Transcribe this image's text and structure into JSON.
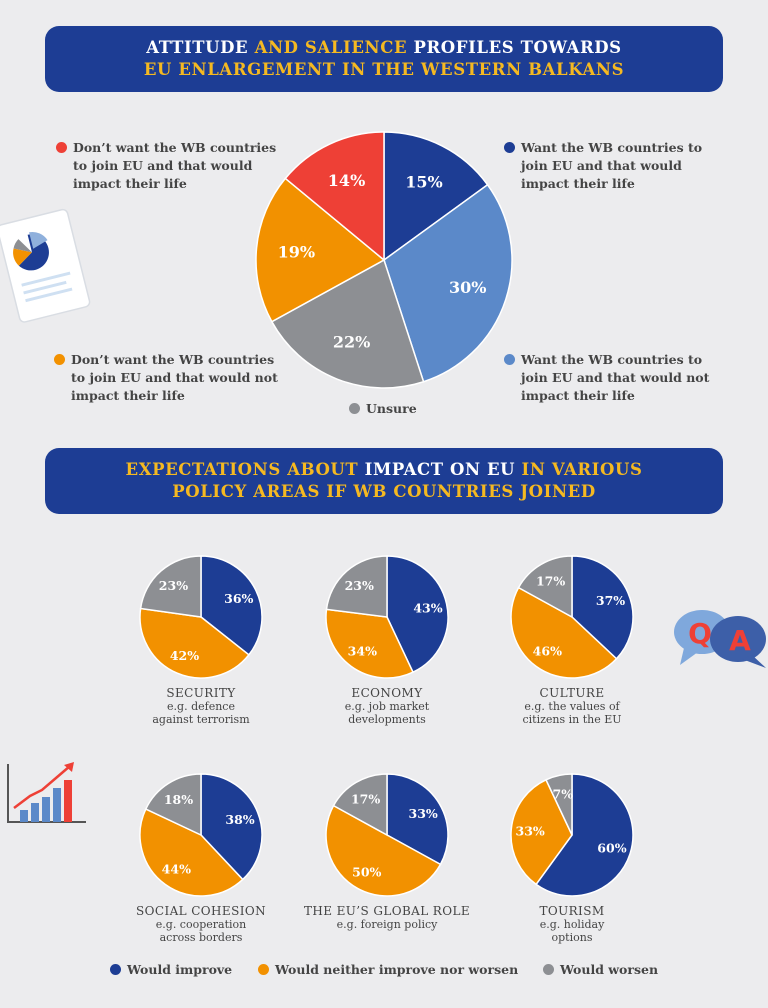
{
  "banner1": {
    "line1": [
      {
        "t": "ATTITUDE ",
        "c": "w"
      },
      {
        "t": "AND SALIENCE ",
        "c": "y"
      },
      {
        "t": "PROFILES TOWARDS",
        "c": "w"
      }
    ],
    "line2": [
      {
        "t": "EU ENLARGEMENT IN THE WESTERN BALKANS",
        "c": "y"
      }
    ]
  },
  "banner2": {
    "line1": [
      {
        "t": "EXPECTATIONS ABOUT ",
        "c": "y"
      },
      {
        "t": "IMPACT ON EU ",
        "c": "w"
      },
      {
        "t": "IN VARIOUS",
        "c": "y"
      }
    ],
    "line2": [
      {
        "t": "POLICY AREAS IF WB COUNTRIES JOINED",
        "c": "y"
      }
    ]
  },
  "colors": {
    "navy": "#1d3d94",
    "light_blue": "#5b89c9",
    "grey": "#8d8f93",
    "orange": "#f29100",
    "red": "#ee4036",
    "yellow": "#f5b921"
  },
  "main_legend": {
    "want_impact": "Want the WB countries to\njoin EU and that would\nimpact their life",
    "want_no_impact": "Want the WB countries to\njoin EU and that would not\nimpact their life",
    "unsure": "Unsure",
    "dont_no_impact": "Don’t want the WB countries\nto join EU and that would not\nimpact their life",
    "dont_impact": "Don’t want the WB countries\nto join EU and that would\nimpact their life"
  },
  "bottom_legend": {
    "improve": "Would improve",
    "neither": "Would neither improve nor worsen",
    "worsen": "Would worsen"
  },
  "decorations": [
    "document-pie-icon",
    "qa-speech-bubbles-icon",
    "growth-bar-chart-icon"
  ],
  "chart_data": [
    {
      "type": "pie",
      "slices": [
        {
          "label": "Want the WB countries to join EU and that would impact their life",
          "value": 15,
          "color": "#1d3d94",
          "text": "15%"
        },
        {
          "label": "Want the WB countries to join EU and that would not impact their life",
          "value": 30,
          "color": "#5b89c9",
          "text": "30%"
        },
        {
          "label": "Unsure",
          "value": 22,
          "color": "#8d8f93",
          "text": "22%"
        },
        {
          "label": "Don’t want the WB countries to join EU and that would not impact their life",
          "value": 19,
          "color": "#f29100",
          "text": "19%"
        },
        {
          "label": "Don’t want the WB countries to join EU and that would impact their life",
          "value": 14,
          "color": "#ee4036",
          "text": "14%"
        }
      ]
    },
    {
      "type": "pie",
      "name": "SECURITY",
      "subtitle": "e.g. defence\nagainst terrorism",
      "values": [
        36,
        42,
        23
      ],
      "labels": [
        "36%",
        "42%",
        "23%"
      ]
    },
    {
      "type": "pie",
      "name": "ECONOMY",
      "subtitle": "e.g. job market\ndevelopments",
      "values": [
        43,
        34,
        23
      ],
      "labels": [
        "43%",
        "34%",
        "23%"
      ]
    },
    {
      "type": "pie",
      "name": "CULTURE",
      "subtitle": "e.g. the values of\ncitizens in the EU",
      "values": [
        37,
        46,
        17
      ],
      "labels": [
        "37%",
        "46%",
        "17%"
      ]
    },
    {
      "type": "pie",
      "name": "SOCIAL COHESION",
      "subtitle": "e.g. cooperation\nacross borders",
      "values": [
        38,
        44,
        18
      ],
      "labels": [
        "38%",
        "44%",
        "18%"
      ]
    },
    {
      "type": "pie",
      "name": "THE EU’S GLOBAL ROLE",
      "subtitle": "e.g. foreign policy",
      "values": [
        33,
        50,
        17
      ],
      "labels": [
        "33%",
        "50%",
        "17%"
      ]
    },
    {
      "type": "pie",
      "name": "TOURISM",
      "subtitle": "e.g. holiday\noptions",
      "values": [
        60,
        33,
        7
      ],
      "labels": [
        "60%",
        "33%",
        "7%"
      ]
    }
  ]
}
